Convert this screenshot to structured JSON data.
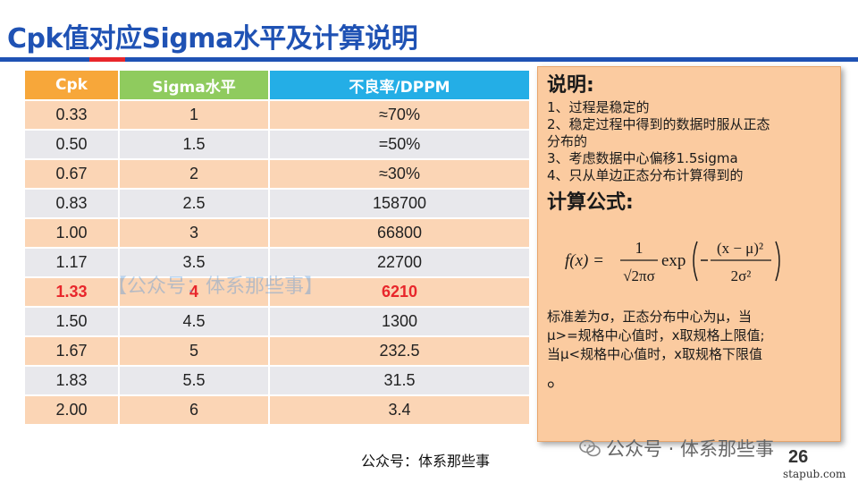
{
  "title": "Cpk值对应Sigma水平及计算说明",
  "colors": {
    "title": "#1f52b4",
    "header_cpk": "#f7a73a",
    "header_sigma": "#8fcb5e",
    "header_dppm": "#24aee6",
    "row_odd": "#fbd5b5",
    "row_even": "#e8e8ec",
    "highlight_text": "#e8262b",
    "note_bg": "#fbcba0"
  },
  "table": {
    "headers": [
      "Cpk",
      "Sigma水平",
      "不良率/DPPM"
    ],
    "rows": [
      [
        "0.33",
        "1",
        "≈70%"
      ],
      [
        "0.50",
        "1.5",
        "=50%"
      ],
      [
        "0.67",
        "2",
        "≈30%"
      ],
      [
        "0.83",
        "2.5",
        "158700"
      ],
      [
        "1.00",
        "3",
        "66800"
      ],
      [
        "1.17",
        "3.5",
        "22700"
      ],
      [
        "1.33",
        "4",
        "6210"
      ],
      [
        "1.50",
        "4.5",
        "1300"
      ],
      [
        "1.67",
        "5",
        "232.5"
      ],
      [
        "1.83",
        "5.5",
        "31.5"
      ],
      [
        "2.00",
        "6",
        "3.4"
      ]
    ],
    "highlight_row": 6
  },
  "watermark": "【公众号：体系那些事】",
  "note": {
    "heading": "说明:",
    "lines": [
      "1、过程是稳定的",
      "2、稳定过程中得到的数据时服从正态",
      "分布的",
      "3、考虑数据中心偏移1.5sigma",
      "4、只从单边正态分布计算得到的"
    ],
    "formula_heading": "计算公式:",
    "formula": {
      "lhs": "f(x) =",
      "num": "1",
      "den": "√2πσ",
      "exp": "exp",
      "inner_num": "(x − μ)²",
      "inner_den": "2σ²"
    },
    "description": [
      "标准差为σ，正态分布中心为μ，当",
      "μ>=规格中心值时，x取规格上限值;",
      "当μ<规格中心值时，x取规格下限值"
    ],
    "tail": "。"
  },
  "footer": {
    "source": "公众号：体系那些事",
    "account": "公众号 · 体系那些事",
    "page_number": "26",
    "site": "stapub.com"
  }
}
